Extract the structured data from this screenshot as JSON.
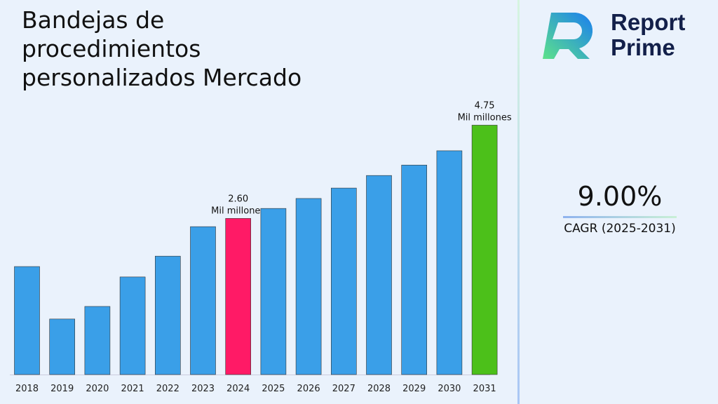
{
  "title": "Bandejas de procedimientos personalizados Mercado",
  "brand": {
    "line1": "Report",
    "line2": "Prime"
  },
  "cagr": {
    "value": "9.00%",
    "label": "CAGR (2025-2031)"
  },
  "colors": {
    "default": "#3a9fe8",
    "highlight_2024": "#ff1a66",
    "highlight_2031": "#4cc01a"
  },
  "chart_data": {
    "type": "bar",
    "title": "Bandejas de procedimientos personalizados Mercado",
    "categories": [
      "2018",
      "2019",
      "2020",
      "2021",
      "2022",
      "2023",
      "2024",
      "2025",
      "2026",
      "2027",
      "2028",
      "2029",
      "2030",
      "2031"
    ],
    "values": [
      1.49,
      0.28,
      0.57,
      1.25,
      1.73,
      2.41,
      2.6,
      2.83,
      3.06,
      3.3,
      3.59,
      3.83,
      4.16,
      4.75
    ],
    "ylim": [
      -1.0,
      5.0
    ],
    "grid": false,
    "annotations": [
      {
        "category": "2024",
        "value": "2.60",
        "unit": "Mil millones"
      },
      {
        "category": "2031",
        "value": "4.75",
        "unit": "Mil millones"
      }
    ]
  }
}
